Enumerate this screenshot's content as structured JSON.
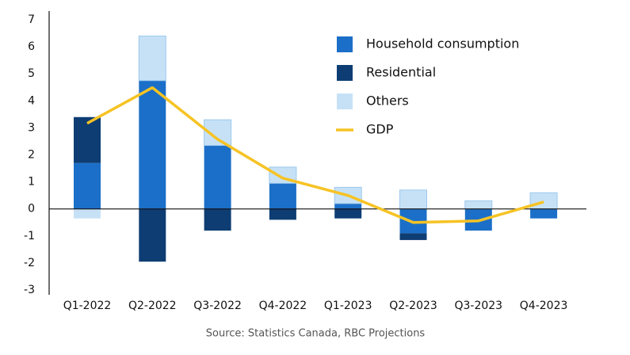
{
  "chart_data": {
    "type": "bar",
    "categories": [
      "Q1-2022",
      "Q2-2022",
      "Q3-2022",
      "Q4-2022",
      "Q1-2023",
      "Q2-2023",
      "Q3-2023",
      "Q4-2023"
    ],
    "series": [
      {
        "name": "Household consumption",
        "color": "#1b6fc8",
        "values": [
          1.7,
          4.75,
          2.35,
          0.95,
          0.2,
          -0.9,
          -0.8,
          -0.35
        ]
      },
      {
        "name": "Residential",
        "color": "#0d3d73",
        "values": [
          1.7,
          -1.95,
          -0.8,
          -0.4,
          -0.35,
          -0.25,
          0,
          0
        ]
      },
      {
        "name": "Others",
        "color": "#c6e1f6",
        "values": [
          -0.35,
          1.65,
          0.95,
          0.6,
          0.6,
          0.7,
          0.3,
          0.6
        ]
      },
      {
        "name": "GDP",
        "color": "#f6c324",
        "type": "line",
        "values": [
          3.17,
          4.49,
          2.58,
          1.14,
          0.5,
          -0.5,
          -0.44,
          0.26
        ]
      }
    ],
    "ylim": [
      -3,
      7
    ],
    "yticks": [
      -3,
      -2,
      -1,
      0,
      1,
      2,
      3,
      4,
      5,
      6,
      7
    ],
    "source": "Source: Statistics Canada, RBC Projections"
  }
}
